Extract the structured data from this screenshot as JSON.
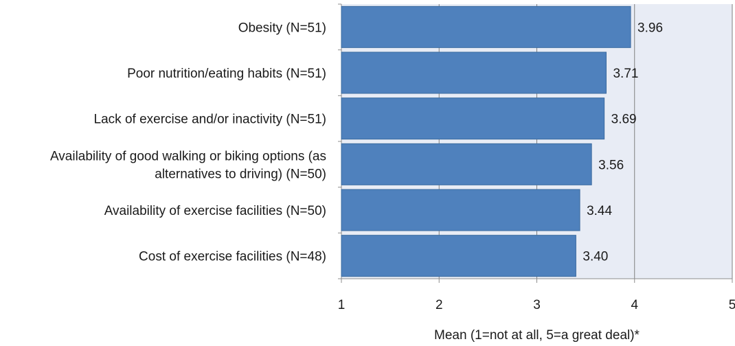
{
  "chart_data": {
    "type": "bar",
    "orientation": "horizontal",
    "title": "",
    "categories": [
      [
        "Obesity (N=51)"
      ],
      [
        "Poor nutrition/eating habits (N=51)"
      ],
      [
        "Lack of exercise and/or inactivity (N=51)"
      ],
      [
        "Availability of good walking or biking options (as",
        "alternatives to driving) (N=50)"
      ],
      [
        "Availability of exercise facilities (N=50)"
      ],
      [
        "Cost of exercise facilities (N=48)"
      ]
    ],
    "values": [
      3.96,
      3.71,
      3.69,
      3.56,
      3.44,
      3.4
    ],
    "value_labels": [
      "3.96",
      "3.71",
      "3.69",
      "3.56",
      "3.44",
      "3.40"
    ],
    "xlim": [
      1,
      5
    ],
    "xticks": [
      1,
      2,
      3,
      4,
      5
    ],
    "xtick_labels": [
      "1",
      "2",
      "3",
      "4",
      "5"
    ],
    "xlabel": "Mean (1=not at all, 5=a great deal)*",
    "ylabel": "",
    "grid": "vertical",
    "legend": "none",
    "colors": {
      "bar_fill": "#4f81bd",
      "bar_stroke": "#3a6a9f",
      "plot_background": "#e8ecf5",
      "gridline": "#7f7f7f",
      "axis": "#8c8c8c",
      "text": "#1a1a1a"
    }
  }
}
